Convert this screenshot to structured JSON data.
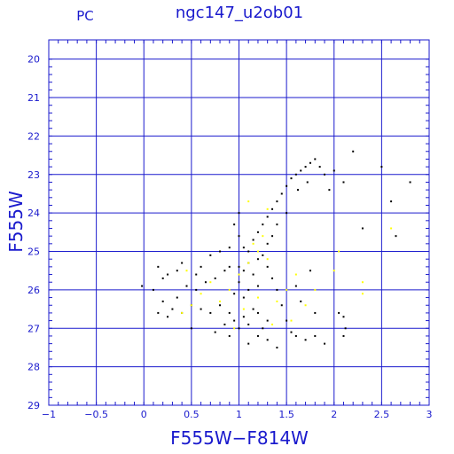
{
  "header": {
    "title": "ngc147_u2ob01",
    "corner_label": "PC"
  },
  "colors": {
    "axis": "#1a1acd",
    "grid": "#1a1acd",
    "black_points": "#000000",
    "yellow_points": "#ffff00",
    "background": "#ffffff"
  },
  "chart_data": {
    "type": "scatter",
    "title": "ngc147_u2ob01",
    "xlabel": "F555W−F814W",
    "ylabel": "F555W",
    "xlim": [
      -1,
      3
    ],
    "ylim": [
      29,
      19.5
    ],
    "y_inverted": true,
    "grid": true,
    "x_ticks": [
      -1,
      -0.5,
      0,
      0.5,
      1,
      1.5,
      2,
      2.5,
      3
    ],
    "x_tick_labels": [
      "−1",
      "−0.5",
      "0",
      "0.5",
      "1",
      "1.5",
      "2",
      "2.5",
      "3"
    ],
    "y_ticks": [
      20,
      21,
      22,
      23,
      24,
      25,
      26,
      27,
      28,
      29
    ],
    "y_tick_labels": [
      "20",
      "21",
      "22",
      "23",
      "24",
      "25",
      "26",
      "27",
      "28",
      "29"
    ],
    "series": [
      {
        "color": "#000000",
        "points": [
          [
            1.1,
            26.9
          ],
          [
            1.05,
            26.7
          ],
          [
            0.95,
            26.8
          ],
          [
            1.2,
            26.6
          ],
          [
            1.0,
            27.0
          ],
          [
            0.85,
            26.9
          ],
          [
            1.3,
            26.8
          ],
          [
            1.15,
            26.5
          ],
          [
            0.9,
            26.6
          ],
          [
            1.25,
            27.0
          ],
          [
            1.05,
            26.2
          ],
          [
            1.1,
            26.0
          ],
          [
            1.0,
            25.8
          ],
          [
            1.2,
            25.9
          ],
          [
            0.95,
            26.1
          ],
          [
            1.15,
            25.6
          ],
          [
            1.05,
            25.5
          ],
          [
            1.1,
            25.3
          ],
          [
            1.2,
            25.2
          ],
          [
            1.0,
            25.4
          ],
          [
            1.1,
            25.0
          ],
          [
            1.05,
            24.9
          ],
          [
            1.15,
            24.7
          ],
          [
            1.2,
            24.5
          ],
          [
            1.25,
            24.3
          ],
          [
            1.3,
            24.1
          ],
          [
            1.35,
            23.9
          ],
          [
            1.4,
            23.7
          ],
          [
            1.45,
            23.5
          ],
          [
            1.5,
            23.3
          ],
          [
            1.55,
            23.1
          ],
          [
            1.6,
            23.0
          ],
          [
            1.65,
            22.9
          ],
          [
            1.7,
            22.8
          ],
          [
            1.75,
            22.7
          ],
          [
            1.8,
            22.6
          ],
          [
            1.85,
            22.8
          ],
          [
            1.9,
            23.0
          ],
          [
            1.72,
            23.2
          ],
          [
            1.62,
            23.4
          ],
          [
            1.5,
            24.0
          ],
          [
            1.4,
            24.3
          ],
          [
            1.35,
            24.6
          ],
          [
            1.3,
            24.8
          ],
          [
            1.25,
            25.1
          ],
          [
            1.3,
            25.4
          ],
          [
            1.35,
            25.7
          ],
          [
            1.4,
            26.0
          ],
          [
            1.45,
            26.4
          ],
          [
            1.5,
            26.8
          ],
          [
            0.3,
            26.5
          ],
          [
            0.4,
            26.6
          ],
          [
            0.5,
            26.4
          ],
          [
            0.6,
            26.5
          ],
          [
            0.7,
            26.6
          ],
          [
            0.8,
            26.4
          ],
          [
            0.2,
            26.3
          ],
          [
            0.15,
            26.6
          ],
          [
            0.25,
            26.7
          ],
          [
            0.35,
            26.2
          ],
          [
            0.45,
            25.9
          ],
          [
            0.55,
            26.0
          ],
          [
            0.65,
            25.8
          ],
          [
            0.75,
            25.7
          ],
          [
            0.85,
            25.5
          ],
          [
            0.9,
            25.4
          ],
          [
            0.55,
            25.6
          ],
          [
            0.35,
            25.5
          ],
          [
            0.2,
            25.7
          ],
          [
            0.1,
            26.0
          ],
          [
            0.15,
            25.4
          ],
          [
            0.25,
            25.6
          ],
          [
            0.4,
            25.3
          ],
          [
            0.6,
            25.4
          ],
          [
            0.7,
            25.1
          ],
          [
            0.8,
            25.0
          ],
          [
            0.9,
            24.9
          ],
          [
            1.0,
            24.6
          ],
          [
            0.95,
            24.3
          ],
          [
            1.0,
            24.0
          ],
          [
            -0.02,
            25.9
          ],
          [
            2.2,
            22.4
          ],
          [
            2.5,
            22.8
          ],
          [
            2.6,
            23.7
          ],
          [
            2.8,
            23.2
          ],
          [
            2.3,
            24.4
          ],
          [
            2.65,
            24.6
          ],
          [
            2.1,
            23.2
          ],
          [
            2.0,
            22.9
          ],
          [
            1.95,
            23.4
          ],
          [
            1.55,
            27.1
          ],
          [
            1.6,
            27.2
          ],
          [
            1.7,
            27.3
          ],
          [
            1.8,
            27.2
          ],
          [
            1.9,
            27.4
          ],
          [
            1.3,
            27.3
          ],
          [
            1.2,
            27.2
          ],
          [
            1.1,
            27.4
          ],
          [
            0.9,
            27.2
          ],
          [
            0.75,
            27.1
          ],
          [
            2.05,
            26.6
          ],
          [
            2.1,
            26.7
          ],
          [
            2.12,
            27.0
          ],
          [
            2.1,
            27.2
          ],
          [
            0.5,
            27.0
          ],
          [
            1.4,
            27.5
          ],
          [
            1.8,
            26.6
          ],
          [
            1.75,
            25.5
          ],
          [
            1.6,
            25.9
          ],
          [
            1.65,
            26.3
          ]
        ]
      },
      {
        "color": "#ffff00",
        "points": [
          [
            1.2,
            25.0
          ],
          [
            1.1,
            25.3
          ],
          [
            1.0,
            25.6
          ],
          [
            1.3,
            25.2
          ],
          [
            1.15,
            24.8
          ],
          [
            1.25,
            24.6
          ],
          [
            0.9,
            26.0
          ],
          [
            0.8,
            26.3
          ],
          [
            1.05,
            26.5
          ],
          [
            1.2,
            26.2
          ],
          [
            0.7,
            25.8
          ],
          [
            0.6,
            26.1
          ],
          [
            0.5,
            26.4
          ],
          [
            1.4,
            26.3
          ],
          [
            1.5,
            26.0
          ],
          [
            1.6,
            25.6
          ],
          [
            1.7,
            26.4
          ],
          [
            1.8,
            26.0
          ],
          [
            2.0,
            25.5
          ],
          [
            2.3,
            25.8
          ],
          [
            2.3,
            26.1
          ],
          [
            2.6,
            24.4
          ],
          [
            1.1,
            23.7
          ],
          [
            1.3,
            23.9
          ],
          [
            0.4,
            26.6
          ],
          [
            0.45,
            25.5
          ],
          [
            1.35,
            26.9
          ],
          [
            0.95,
            27.0
          ],
          [
            1.55,
            26.8
          ],
          [
            2.05,
            25.0
          ]
        ]
      }
    ]
  }
}
